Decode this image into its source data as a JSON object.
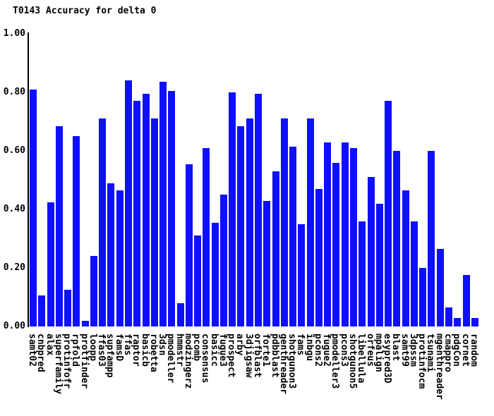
{
  "title": "T0143 Accuracy for delta 0",
  "chart_data": {
    "type": "bar",
    "title": "T0143 Accuracy for delta 0",
    "xlabel": "",
    "ylabel": "",
    "ylim": [
      0,
      1
    ],
    "yticks": [
      "0.00",
      "0.20",
      "0.40",
      "0.60",
      "0.80",
      "1.00"
    ],
    "grid": false,
    "legend": "none",
    "bar_color": "#0f0fff",
    "categories": [
      "samt02",
      "cnbpred",
      "alax",
      "superfamily",
      "protinfofr",
      "rpfold",
      "protfinder",
      "loopp",
      "ffas03",
      "supfampp",
      "famsD",
      "ffas",
      "raptor",
      "basicb",
      "robetta",
      "3dsn",
      "pmodeller",
      "hmmstr",
      "modzingerz",
      "pcomb",
      "consensus",
      "basicc",
      "fugue3",
      "prospect",
      "arby",
      "3djigsaw",
      "orfblast",
      "forte1",
      "pdbblast",
      "genthreader",
      "shotgunon3",
      "fams",
      "inbgu",
      "pcons2",
      "fugue2",
      "pmodeller3",
      "pcons3",
      "shotgunon5",
      "libellula",
      "orfeus",
      "mpalign",
      "esypred3D",
      "blast",
      "samt99",
      "3dpssm",
      "protinfocm",
      "tsunami",
      "mgenthreader",
      "cmappro",
      "pdgCon",
      "cornet",
      "random"
    ],
    "values": [
      0.81,
      0.105,
      0.425,
      0.685,
      0.125,
      0.65,
      0.02,
      0.24,
      0.71,
      0.49,
      0.465,
      0.84,
      0.77,
      0.795,
      0.71,
      0.835,
      0.805,
      0.08,
      0.555,
      0.31,
      0.61,
      0.355,
      0.45,
      0.8,
      0.685,
      0.71,
      0.795,
      0.43,
      0.53,
      0.71,
      0.615,
      0.35,
      0.71,
      0.47,
      0.63,
      0.56,
      0.63,
      0.61,
      0.36,
      0.51,
      0.42,
      0.77,
      0.6,
      0.465,
      0.36,
      0.2,
      0.6,
      0.265,
      0.065,
      0.03,
      0.175,
      0.03
    ]
  }
}
